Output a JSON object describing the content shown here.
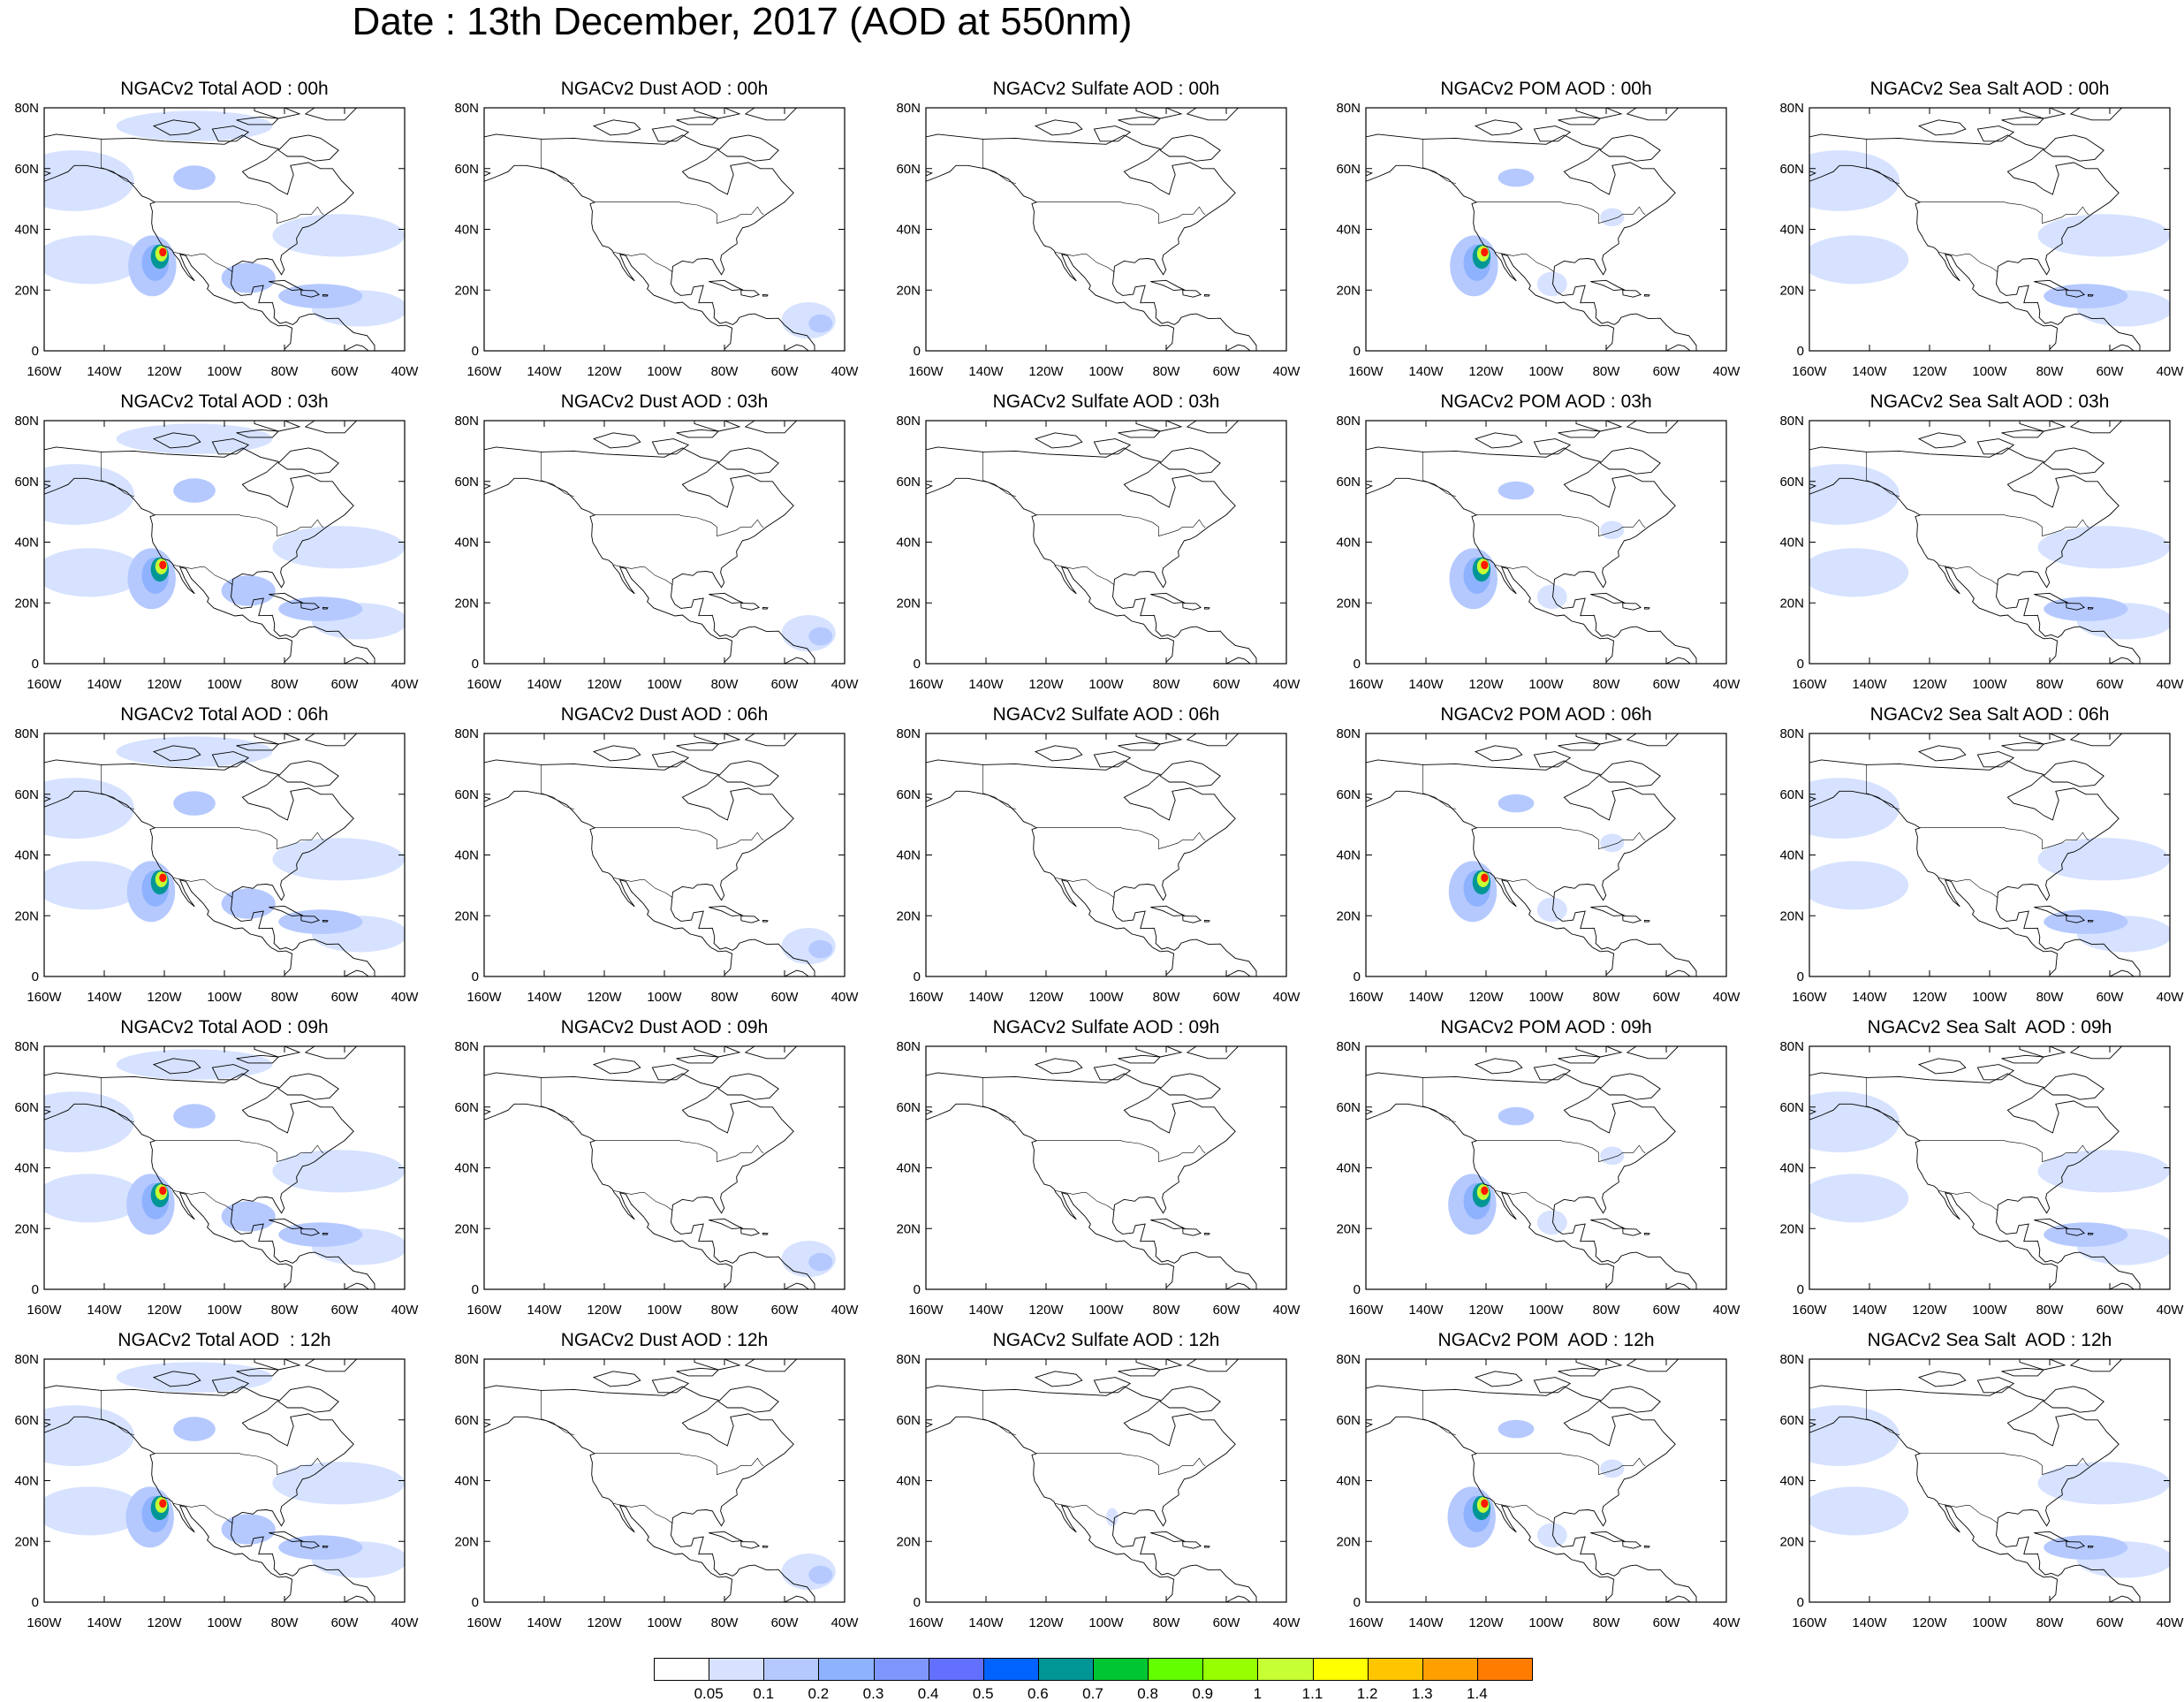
{
  "title": "Date : 13th December, 2017 (AOD at 550nm)",
  "panels": [
    [
      "NGACv2 Total AOD : 00h",
      "NGACv2 Dust AOD : 00h",
      "NGACv2 Sulfate AOD : 00h",
      "NGACv2 POM AOD : 00h",
      "NGACv2 Sea Salt AOD : 00h"
    ],
    [
      "NGACv2 Total AOD : 03h",
      "NGACv2 Dust AOD : 03h",
      "NGACv2 Sulfate AOD : 03h",
      "NGACv2 POM AOD : 03h",
      "NGACv2 Sea Salt AOD : 03h"
    ],
    [
      "NGACv2 Total AOD : 06h",
      "NGACv2 Dust AOD : 06h",
      "NGACv2 Sulfate AOD : 06h",
      "NGACv2 POM AOD : 06h",
      "NGACv2 Sea Salt AOD : 06h"
    ],
    [
      "NGACv2 Total AOD : 09h",
      "NGACv2 Dust AOD : 09h",
      "NGACv2 Sulfate AOD : 09h",
      "NGACv2 POM AOD : 09h",
      "NGACv2 Sea Salt  AOD : 09h"
    ],
    [
      "NGACv2 Total AOD  : 12h",
      "NGACv2 Dust AOD : 12h",
      "NGACv2 Sulfate AOD : 12h",
      "NGACv2 POM  AOD : 12h",
      "NGACv2 Sea Salt  AOD : 12h"
    ]
  ],
  "lon_labels": [
    "160W",
    "140W",
    "120W",
    "100W",
    "80W",
    "60W",
    "40W"
  ],
  "lat_labels": [
    "0",
    "20N",
    "40N",
    "60N",
    "80N"
  ],
  "colorbar": {
    "labels": [
      "0.05",
      "0.1",
      "0.2",
      "0.3",
      "0.4",
      "0.5",
      "0.6",
      "0.7",
      "0.8",
      "0.9",
      "1",
      "1.1",
      "1.2",
      "1.3",
      "1.4"
    ],
    "colors": [
      "#ffffff",
      "#d6e2ff",
      "#b5c9ff",
      "#8fb2ff",
      "#7f96ff",
      "#6370ff",
      "#0063ff",
      "#009696",
      "#00c633",
      "#63ff00",
      "#96ff00",
      "#c6ff33",
      "#ffff00",
      "#ffc600",
      "#ffa000",
      "#ff7c00",
      "#ff1900"
    ]
  }
}
